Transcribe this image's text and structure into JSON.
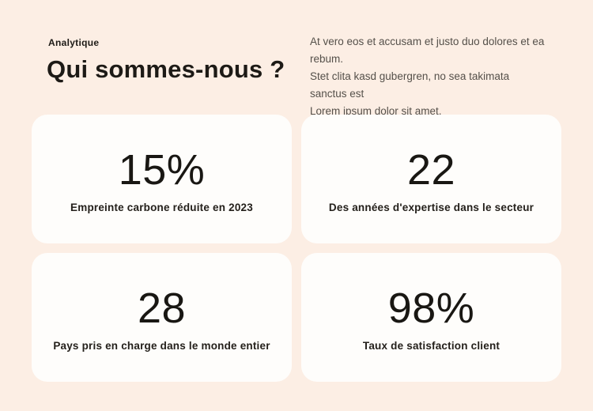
{
  "page": {
    "background_color": "#fceee4",
    "card_background_color": "#fefdfb",
    "text_primary_color": "#1d1a16",
    "text_secondary_color": "#55504a"
  },
  "header": {
    "eyebrow": "Analytique",
    "title": "Qui sommes-nous ?",
    "intro": "At vero eos et accusam et justo duo dolores et ea rebum.\nStet clita kasd gubergren, no sea takimata sanctus est\nLorem ipsum dolor sit amet."
  },
  "stats": {
    "cards": [
      {
        "value": "15%",
        "label": "Empreinte carbone réduite en 2023"
      },
      {
        "value": "22",
        "label": "Des années d'expertise dans le secteur"
      },
      {
        "value": "28",
        "label": "Pays pris en charge dans le monde entier"
      },
      {
        "value": "98%",
        "label": "Taux de satisfaction client"
      }
    ]
  }
}
